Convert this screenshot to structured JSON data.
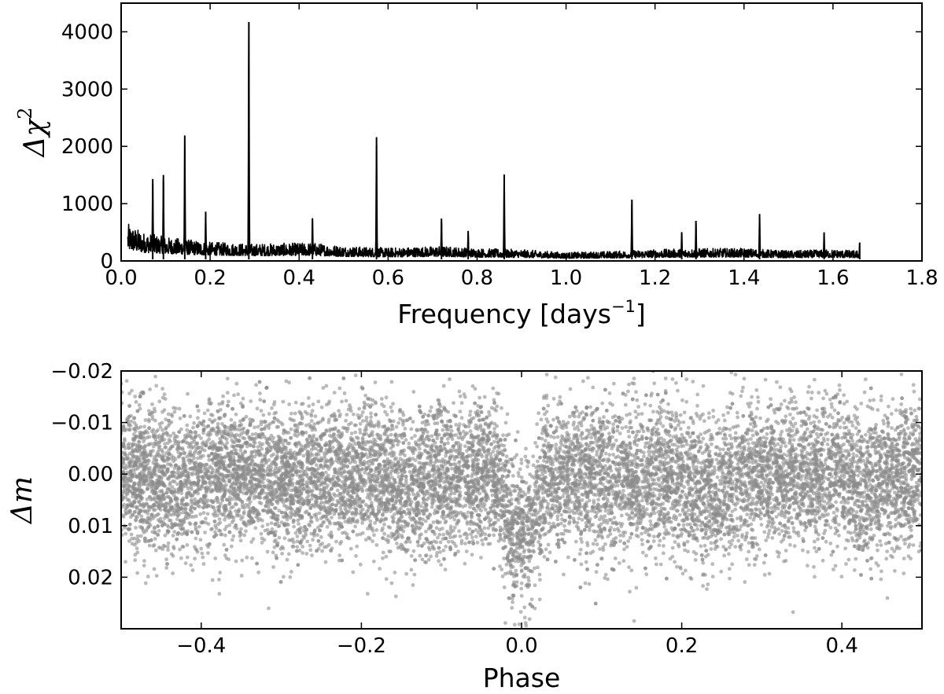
{
  "chart_data": [
    {
      "type": "line",
      "title": "",
      "xlabel": "Frequency [days",
      "xlabel_sup": "−1",
      "xlabel_close": "]",
      "ylabel_symbol": "Δχ",
      "ylabel_sup": "2",
      "xlim": [
        0.0,
        1.8
      ],
      "ylim": [
        0,
        4500
      ],
      "x_ticks": [
        0.0,
        0.2,
        0.4,
        0.6,
        0.8,
        1.0,
        1.2,
        1.4,
        1.6,
        1.8
      ],
      "x_tick_labels": [
        "0.0",
        "0.2",
        "0.4",
        "0.6",
        "0.8",
        "1.0",
        "1.2",
        "1.4",
        "1.6",
        "1.8"
      ],
      "y_ticks": [
        0,
        1000,
        2000,
        3000,
        4000
      ],
      "y_tick_labels": [
        "0",
        "1000",
        "2000",
        "3000",
        "4000"
      ],
      "grid": false,
      "legend": "none",
      "color": "#000000",
      "frequency_range": [
        0.015,
        1.66
      ],
      "baseline_envelope": [
        [
          0.015,
          650
        ],
        [
          0.05,
          500
        ],
        [
          0.1,
          420
        ],
        [
          0.2,
          330
        ],
        [
          0.3,
          300
        ],
        [
          0.43,
          320
        ],
        [
          0.5,
          260
        ],
        [
          0.6,
          230
        ],
        [
          0.72,
          260
        ],
        [
          0.8,
          220
        ],
        [
          0.9,
          200
        ],
        [
          1.0,
          150
        ],
        [
          1.1,
          170
        ],
        [
          1.2,
          200
        ],
        [
          1.3,
          220
        ],
        [
          1.4,
          220
        ],
        [
          1.5,
          180
        ],
        [
          1.6,
          200
        ],
        [
          1.66,
          180
        ]
      ],
      "peaks": [
        {
          "x": 0.071,
          "y": 1430
        },
        {
          "x": 0.095,
          "y": 1500
        },
        {
          "x": 0.143,
          "y": 2190
        },
        {
          "x": 0.19,
          "y": 860
        },
        {
          "x": 0.287,
          "y": 4170
        },
        {
          "x": 0.43,
          "y": 740
        },
        {
          "x": 0.574,
          "y": 2160
        },
        {
          "x": 0.72,
          "y": 740
        },
        {
          "x": 0.78,
          "y": 520
        },
        {
          "x": 0.861,
          "y": 1510
        },
        {
          "x": 1.148,
          "y": 1070
        },
        {
          "x": 1.26,
          "y": 500
        },
        {
          "x": 1.292,
          "y": 700
        },
        {
          "x": 1.435,
          "y": 820
        },
        {
          "x": 1.58,
          "y": 500
        },
        {
          "x": 1.66,
          "y": 320
        }
      ]
    },
    {
      "type": "scatter",
      "title": "",
      "xlabel": "Phase",
      "ylabel_symbol": "Δm",
      "xlim": [
        -0.5,
        0.5
      ],
      "ylim": [
        0.03,
        -0.02
      ],
      "y_inverted": true,
      "x_ticks": [
        -0.4,
        -0.2,
        0.0,
        0.2,
        0.4
      ],
      "x_tick_labels": [
        "−0.4",
        "−0.2",
        "0.0",
        "0.2",
        "0.4"
      ],
      "y_ticks": [
        -0.02,
        -0.01,
        0.0,
        0.01,
        0.02
      ],
      "y_tick_labels": [
        "−0.02",
        "−0.01",
        "0.00",
        "0.01",
        "0.02"
      ],
      "grid": false,
      "legend": "none",
      "color": "#8c8c8c",
      "scatter_model": {
        "baseline_mean": 0.0,
        "scatter_sigma": 0.007,
        "transit_center": 0.0,
        "transit_depth": 0.012,
        "transit_half_width": 0.03,
        "secondary_dips": [
          {
            "phase": -0.43,
            "depth": 0.002
          },
          {
            "phase": -0.29,
            "depth": 0.002
          },
          {
            "phase": -0.14,
            "depth": 0.002
          },
          {
            "phase": 0.14,
            "depth": 0.002
          },
          {
            "phase": 0.235,
            "depth": 0.004
          },
          {
            "phase": 0.43,
            "depth": 0.002
          }
        ]
      }
    }
  ]
}
